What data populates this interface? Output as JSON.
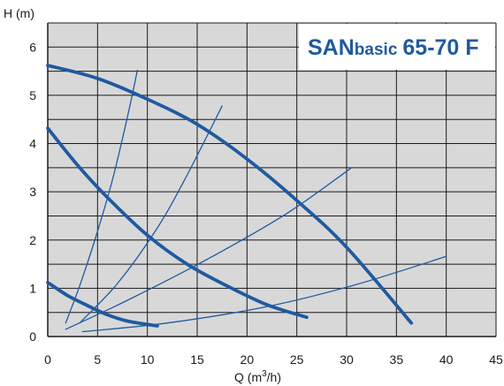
{
  "chart_data": {
    "type": "line",
    "title": "SANbasic 65-70 F",
    "title_parts": {
      "brand": "SAN",
      "series": "basic",
      "model": "65-70 F"
    },
    "xlabel": "Q (m³/h)",
    "xlabel_parts": {
      "text": "Q (m",
      "sup": "3",
      "suffix": "/h)"
    },
    "ylabel": "H (m)",
    "xlim": [
      0,
      45
    ],
    "ylim": [
      0,
      6.5
    ],
    "x_ticks": [
      0,
      5,
      10,
      15,
      20,
      25,
      30,
      35,
      40,
      45
    ],
    "y_ticks": [
      0,
      1,
      2,
      3,
      4,
      5,
      6
    ],
    "grid": true,
    "colors": {
      "curve": "#1f5aa0",
      "title": "#1f5aa0",
      "grid": "#1a1a1a",
      "plot_bg": "#d8d8d8",
      "title_bg": "#ffffff"
    },
    "pump_curves": [
      {
        "x": [
          0,
          5,
          10,
          15,
          20,
          25,
          30,
          36.5
        ],
        "y": [
          5.62,
          5.35,
          4.92,
          4.4,
          3.68,
          2.82,
          1.85,
          0.28
        ]
      },
      {
        "x": [
          0,
          3,
          6,
          10,
          14,
          18,
          22,
          26
        ],
        "y": [
          4.32,
          3.55,
          2.88,
          2.1,
          1.5,
          1.05,
          0.66,
          0.4
        ]
      },
      {
        "x": [
          0,
          2,
          4,
          6,
          8,
          11
        ],
        "y": [
          1.12,
          0.85,
          0.64,
          0.45,
          0.32,
          0.22
        ]
      }
    ],
    "system_curves": [
      {
        "x": [
          1.8,
          3.2,
          4.8,
          6.5,
          8,
          9
        ],
        "y": [
          0.28,
          1.05,
          2.05,
          3.25,
          4.55,
          5.52
        ]
      },
      {
        "x": [
          3.2,
          7,
          11,
          14,
          17.5
        ],
        "y": [
          0.28,
          1.1,
          2.25,
          3.35,
          4.78
        ]
      },
      {
        "x": [
          1.8,
          8,
          16,
          24,
          30.5
        ],
        "y": [
          0.15,
          0.75,
          1.6,
          2.55,
          3.5
        ]
      },
      {
        "x": [
          3.5,
          12,
          22,
          31,
          40
        ],
        "y": [
          0.1,
          0.28,
          0.62,
          1.08,
          1.66
        ]
      }
    ]
  }
}
